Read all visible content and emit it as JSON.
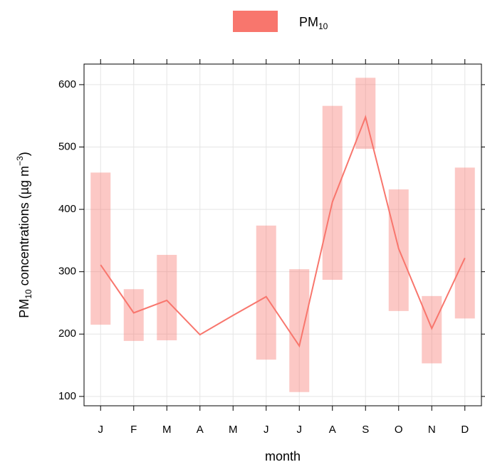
{
  "chart_data": {
    "type": "line",
    "x_label": "month",
    "y_label": {
      "prefix": "PM",
      "subscript": "10",
      "middle": " concentrations (µg m",
      "superscript": "−3",
      "suffix": ")"
    },
    "categories": [
      "J",
      "F",
      "M",
      "A",
      "M",
      "J",
      "J",
      "A",
      "S",
      "O",
      "N",
      "D"
    ],
    "series": [
      {
        "name": "PM",
        "name_subscript": "10",
        "color": "#f8766d",
        "values": [
          311,
          234,
          254,
          199,
          230,
          260,
          181,
          412,
          548,
          337,
          209,
          322
        ],
        "lower": [
          215,
          189,
          190,
          null,
          null,
          159,
          107,
          287,
          497,
          237,
          153,
          225
        ],
        "upper": [
          459,
          272,
          327,
          null,
          null,
          374,
          304,
          566,
          611,
          432,
          261,
          467
        ]
      }
    ],
    "ylim": [
      85,
      633
    ],
    "yticks": [
      100,
      200,
      300,
      400,
      500,
      600
    ],
    "grid": true,
    "legend": "top"
  }
}
